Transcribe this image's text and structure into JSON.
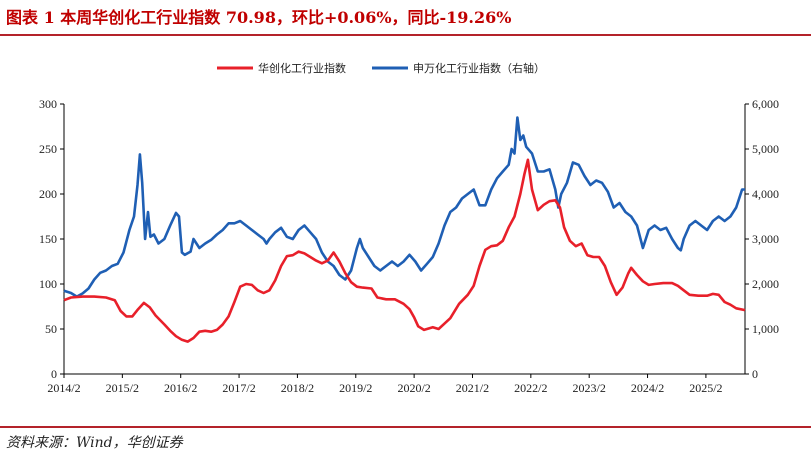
{
  "header": {
    "title": "图表 1   本周华创化工行业指数 70.98，环比+0.06%，同比-19.26%"
  },
  "footer": {
    "source": "资料来源：Wind，华创证券"
  },
  "colors": {
    "accent": "#b4232a",
    "series_red": "#e8202a",
    "series_blue": "#1f5fb4"
  },
  "chart_data": {
    "type": "line",
    "legend_position": "top-center",
    "grid": false,
    "x_tick_labels": [
      "2014/2",
      "2015/2",
      "2016/2",
      "2017/2",
      "2018/2",
      "2019/2",
      "2020/2",
      "2021/2",
      "2022/2",
      "2023/2",
      "2024/2",
      "2025/2"
    ],
    "x_range": [
      2014.08,
      2025.75
    ],
    "y_left": {
      "range": [
        0,
        300
      ],
      "ticks": [
        0,
        50,
        100,
        150,
        200,
        250,
        300
      ],
      "tick_labels": [
        "0",
        "50",
        "100",
        "150",
        "200",
        "250",
        "300"
      ]
    },
    "y_right": {
      "range": [
        0,
        6000
      ],
      "ticks": [
        0,
        1000,
        2000,
        3000,
        4000,
        5000,
        6000
      ],
      "tick_labels": [
        "0",
        "1,000",
        "2,000",
        "3,000",
        "4,000",
        "5,000",
        "6,000"
      ]
    },
    "series": [
      {
        "name": "华创化工行业指数",
        "axis": "left",
        "color": "#e8202a",
        "points": [
          [
            2014.08,
            82
          ],
          [
            2014.2,
            85
          ],
          [
            2014.4,
            86
          ],
          [
            2014.6,
            86
          ],
          [
            2014.8,
            85
          ],
          [
            2014.95,
            82
          ],
          [
            2015.05,
            70
          ],
          [
            2015.15,
            64
          ],
          [
            2015.25,
            64
          ],
          [
            2015.35,
            72
          ],
          [
            2015.45,
            79
          ],
          [
            2015.55,
            74
          ],
          [
            2015.65,
            65
          ],
          [
            2015.8,
            55
          ],
          [
            2015.9,
            48
          ],
          [
            2016.0,
            42
          ],
          [
            2016.1,
            38
          ],
          [
            2016.2,
            36
          ],
          [
            2016.3,
            40
          ],
          [
            2016.4,
            47
          ],
          [
            2016.5,
            48
          ],
          [
            2016.6,
            47
          ],
          [
            2016.7,
            49
          ],
          [
            2016.8,
            55
          ],
          [
            2016.9,
            64
          ],
          [
            2017.0,
            80
          ],
          [
            2017.1,
            97
          ],
          [
            2017.2,
            100
          ],
          [
            2017.3,
            99
          ],
          [
            2017.4,
            93
          ],
          [
            2017.5,
            90
          ],
          [
            2017.6,
            93
          ],
          [
            2017.7,
            104
          ],
          [
            2017.8,
            120
          ],
          [
            2017.9,
            131
          ],
          [
            2018.0,
            132
          ],
          [
            2018.1,
            136
          ],
          [
            2018.2,
            134
          ],
          [
            2018.3,
            130
          ],
          [
            2018.4,
            126
          ],
          [
            2018.5,
            123
          ],
          [
            2018.6,
            126
          ],
          [
            2018.7,
            135
          ],
          [
            2018.8,
            125
          ],
          [
            2018.9,
            112
          ],
          [
            2019.0,
            102
          ],
          [
            2019.1,
            97
          ],
          [
            2019.2,
            96
          ],
          [
            2019.35,
            95
          ],
          [
            2019.45,
            85
          ],
          [
            2019.6,
            83
          ],
          [
            2019.75,
            83
          ],
          [
            2019.9,
            78
          ],
          [
            2020.0,
            72
          ],
          [
            2020.08,
            63
          ],
          [
            2020.15,
            53
          ],
          [
            2020.25,
            49
          ],
          [
            2020.4,
            52
          ],
          [
            2020.5,
            50
          ],
          [
            2020.6,
            56
          ],
          [
            2020.7,
            62
          ],
          [
            2020.85,
            78
          ],
          [
            2021.0,
            88
          ],
          [
            2021.1,
            98
          ],
          [
            2021.2,
            120
          ],
          [
            2021.3,
            138
          ],
          [
            2021.4,
            142
          ],
          [
            2021.5,
            143
          ],
          [
            2021.6,
            148
          ],
          [
            2021.7,
            163
          ],
          [
            2021.8,
            175
          ],
          [
            2021.9,
            200
          ],
          [
            2021.97,
            222
          ],
          [
            2022.03,
            238
          ],
          [
            2022.1,
            205
          ],
          [
            2022.2,
            182
          ],
          [
            2022.3,
            188
          ],
          [
            2022.4,
            192
          ],
          [
            2022.5,
            193
          ],
          [
            2022.58,
            185
          ],
          [
            2022.65,
            163
          ],
          [
            2022.75,
            148
          ],
          [
            2022.85,
            142
          ],
          [
            2022.95,
            145
          ],
          [
            2023.05,
            132
          ],
          [
            2023.15,
            130
          ],
          [
            2023.25,
            130
          ],
          [
            2023.35,
            120
          ],
          [
            2023.45,
            102
          ],
          [
            2023.55,
            88
          ],
          [
            2023.65,
            96
          ],
          [
            2023.75,
            112
          ],
          [
            2023.8,
            118
          ],
          [
            2023.9,
            110
          ],
          [
            2024.0,
            103
          ],
          [
            2024.1,
            99
          ],
          [
            2024.2,
            100
          ],
          [
            2024.35,
            101
          ],
          [
            2024.5,
            101
          ],
          [
            2024.6,
            98
          ],
          [
            2024.7,
            93
          ],
          [
            2024.8,
            88
          ],
          [
            2024.95,
            87
          ],
          [
            2025.1,
            87
          ],
          [
            2025.2,
            89
          ],
          [
            2025.3,
            88
          ],
          [
            2025.4,
            80
          ],
          [
            2025.5,
            77
          ],
          [
            2025.6,
            73
          ],
          [
            2025.75,
            71
          ]
        ]
      },
      {
        "name": "申万化工行业指数（右轴）",
        "axis": "right",
        "color": "#1f5fb4",
        "points": [
          [
            2014.08,
            1850
          ],
          [
            2014.2,
            1800
          ],
          [
            2014.3,
            1720
          ],
          [
            2014.4,
            1790
          ],
          [
            2014.5,
            1900
          ],
          [
            2014.6,
            2100
          ],
          [
            2014.7,
            2250
          ],
          [
            2014.8,
            2300
          ],
          [
            2014.9,
            2400
          ],
          [
            2015.0,
            2450
          ],
          [
            2015.1,
            2700
          ],
          [
            2015.2,
            3200
          ],
          [
            2015.28,
            3500
          ],
          [
            2015.34,
            4200
          ],
          [
            2015.38,
            4880
          ],
          [
            2015.42,
            4250
          ],
          [
            2015.47,
            3000
          ],
          [
            2015.52,
            3600
          ],
          [
            2015.56,
            3050
          ],
          [
            2015.62,
            3100
          ],
          [
            2015.7,
            2900
          ],
          [
            2015.8,
            3000
          ],
          [
            2015.9,
            3300
          ],
          [
            2016.0,
            3580
          ],
          [
            2016.05,
            3500
          ],
          [
            2016.1,
            2700
          ],
          [
            2016.15,
            2650
          ],
          [
            2016.25,
            2720
          ],
          [
            2016.3,
            3000
          ],
          [
            2016.4,
            2800
          ],
          [
            2016.5,
            2900
          ],
          [
            2016.6,
            2980
          ],
          [
            2016.7,
            3100
          ],
          [
            2016.8,
            3200
          ],
          [
            2016.9,
            3350
          ],
          [
            2017.0,
            3350
          ],
          [
            2017.1,
            3400
          ],
          [
            2017.2,
            3300
          ],
          [
            2017.3,
            3200
          ],
          [
            2017.4,
            3100
          ],
          [
            2017.5,
            3000
          ],
          [
            2017.55,
            2900
          ],
          [
            2017.6,
            3000
          ],
          [
            2017.7,
            3150
          ],
          [
            2017.8,
            3250
          ],
          [
            2017.9,
            3050
          ],
          [
            2018.0,
            3000
          ],
          [
            2018.1,
            3200
          ],
          [
            2018.2,
            3300
          ],
          [
            2018.3,
            3150
          ],
          [
            2018.4,
            3000
          ],
          [
            2018.5,
            2700
          ],
          [
            2018.6,
            2500
          ],
          [
            2018.7,
            2400
          ],
          [
            2018.8,
            2200
          ],
          [
            2018.9,
            2100
          ],
          [
            2019.0,
            2300
          ],
          [
            2019.1,
            2800
          ],
          [
            2019.15,
            3000
          ],
          [
            2019.2,
            2800
          ],
          [
            2019.3,
            2600
          ],
          [
            2019.4,
            2400
          ],
          [
            2019.5,
            2300
          ],
          [
            2019.6,
            2400
          ],
          [
            2019.7,
            2500
          ],
          [
            2019.8,
            2400
          ],
          [
            2019.9,
            2500
          ],
          [
            2020.0,
            2650
          ],
          [
            2020.1,
            2500
          ],
          [
            2020.2,
            2300
          ],
          [
            2020.3,
            2450
          ],
          [
            2020.4,
            2600
          ],
          [
            2020.5,
            2900
          ],
          [
            2020.6,
            3300
          ],
          [
            2020.7,
            3600
          ],
          [
            2020.8,
            3700
          ],
          [
            2020.9,
            3900
          ],
          [
            2021.0,
            4000
          ],
          [
            2021.1,
            4100
          ],
          [
            2021.2,
            3750
          ],
          [
            2021.3,
            3750
          ],
          [
            2021.4,
            4100
          ],
          [
            2021.5,
            4350
          ],
          [
            2021.6,
            4500
          ],
          [
            2021.7,
            4650
          ],
          [
            2021.75,
            5000
          ],
          [
            2021.8,
            4900
          ],
          [
            2021.85,
            5700
          ],
          [
            2021.9,
            5200
          ],
          [
            2021.95,
            5300
          ],
          [
            2022.0,
            5050
          ],
          [
            2022.1,
            4900
          ],
          [
            2022.2,
            4500
          ],
          [
            2022.3,
            4500
          ],
          [
            2022.4,
            4550
          ],
          [
            2022.5,
            4100
          ],
          [
            2022.55,
            3700
          ],
          [
            2022.6,
            4000
          ],
          [
            2022.7,
            4250
          ],
          [
            2022.8,
            4700
          ],
          [
            2022.9,
            4650
          ],
          [
            2023.0,
            4400
          ],
          [
            2023.1,
            4200
          ],
          [
            2023.2,
            4300
          ],
          [
            2023.3,
            4250
          ],
          [
            2023.4,
            4050
          ],
          [
            2023.5,
            3700
          ],
          [
            2023.6,
            3800
          ],
          [
            2023.7,
            3600
          ],
          [
            2023.8,
            3500
          ],
          [
            2023.9,
            3300
          ],
          [
            2024.0,
            2800
          ],
          [
            2024.1,
            3200
          ],
          [
            2024.2,
            3300
          ],
          [
            2024.3,
            3200
          ],
          [
            2024.4,
            3250
          ],
          [
            2024.5,
            3000
          ],
          [
            2024.6,
            2800
          ],
          [
            2024.65,
            2750
          ],
          [
            2024.7,
            3000
          ],
          [
            2024.8,
            3300
          ],
          [
            2024.9,
            3400
          ],
          [
            2025.0,
            3300
          ],
          [
            2025.1,
            3200
          ],
          [
            2025.2,
            3400
          ],
          [
            2025.3,
            3500
          ],
          [
            2025.4,
            3400
          ],
          [
            2025.5,
            3500
          ],
          [
            2025.6,
            3700
          ],
          [
            2025.7,
            4100
          ],
          [
            2025.75,
            4100
          ]
        ]
      }
    ]
  }
}
